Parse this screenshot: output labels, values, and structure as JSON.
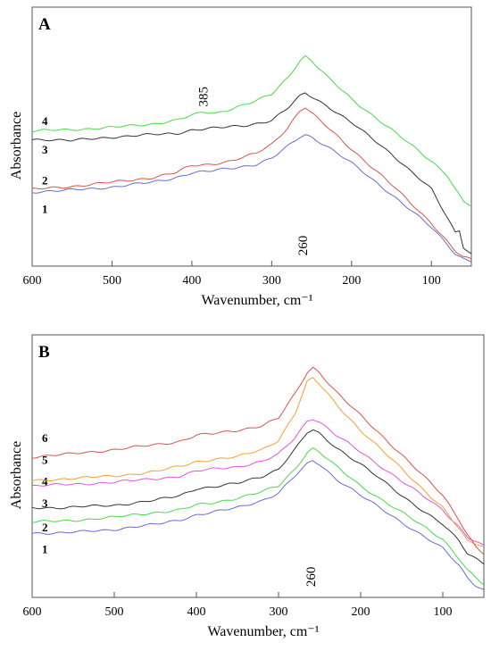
{
  "chart_data": [
    {
      "type": "line",
      "panel": "A",
      "title": "",
      "xlabel": "Wavenumber, cm⁻¹",
      "ylabel": "Absorbance",
      "xlim": [
        600,
        50
      ],
      "ylim": [
        0,
        100
      ],
      "x_ticks": [
        600,
        500,
        400,
        300,
        200,
        100
      ],
      "x_tick_labels": [
        "600",
        "500",
        "400",
        "300",
        "200",
        "100"
      ],
      "annotations": [
        {
          "text": "260",
          "x": 260
        },
        {
          "text": "385",
          "x": 385
        }
      ],
      "series": [
        {
          "label": "1",
          "color": "#6b6bd6",
          "label_y": 22,
          "line_y": 29,
          "points": [
            [
              600,
              29
            ],
            [
              560,
              29.5
            ],
            [
              500,
              31
            ],
            [
              450,
              33
            ],
            [
              420,
              35
            ],
            [
              400,
              37
            ],
            [
              380,
              37.5
            ],
            [
              350,
              39
            ],
            [
              320,
              40.5
            ],
            [
              300,
              43
            ],
            [
              280,
              48
            ],
            [
              265,
              52
            ],
            [
              258,
              53
            ],
            [
              250,
              52
            ],
            [
              230,
              48
            ],
            [
              200,
              41
            ],
            [
              150,
              28
            ],
            [
              100,
              14
            ],
            [
              80,
              7
            ],
            [
              70,
              3
            ],
            [
              60,
              1
            ],
            [
              50,
              0
            ]
          ]
        },
        {
          "label": "2",
          "color": "#e0504a",
          "label_y": 34,
          "line_y": 30.5,
          "points": [
            [
              600,
              30
            ],
            [
              560,
              31
            ],
            [
              500,
              33
            ],
            [
              450,
              35
            ],
            [
              420,
              37
            ],
            [
              400,
              40
            ],
            [
              380,
              40.5
            ],
            [
              350,
              42
            ],
            [
              320,
              45
            ],
            [
              300,
              49
            ],
            [
              280,
              56
            ],
            [
              265,
              63
            ],
            [
              258,
              64.5
            ],
            [
              250,
              62
            ],
            [
              230,
              56
            ],
            [
              200,
              47
            ],
            [
              150,
              32
            ],
            [
              100,
              16
            ],
            [
              80,
              8
            ],
            [
              70,
              4
            ],
            [
              60,
              1.5
            ],
            [
              50,
              0.5
            ]
          ]
        },
        {
          "label": "3",
          "color": "#333333",
          "label_y": 47,
          "line_y": 50.5,
          "points": [
            [
              600,
              51
            ],
            [
              580,
              51
            ],
            [
              550,
              50.5
            ],
            [
              500,
              52
            ],
            [
              450,
              53
            ],
            [
              420,
              53.5
            ],
            [
              400,
              55
            ],
            [
              360,
              56
            ],
            [
              330,
              57
            ],
            [
              300,
              59
            ],
            [
              280,
              64
            ],
            [
              265,
              69
            ],
            [
              258,
              70.5
            ],
            [
              250,
              69
            ],
            [
              230,
              65
            ],
            [
              200,
              58
            ],
            [
              150,
              45
            ],
            [
              100,
              30
            ],
            [
              80,
              18
            ],
            [
              70,
              12
            ],
            [
              65,
              13
            ],
            [
              60,
              6
            ],
            [
              50,
              3
            ]
          ]
        },
        {
          "label": "4",
          "color": "#44dd44",
          "label_y": 59,
          "line_y": 55,
          "points": [
            [
              600,
              54.5
            ],
            [
              560,
              55
            ],
            [
              500,
              56
            ],
            [
              450,
              57.5
            ],
            [
              420,
              59
            ],
            [
              400,
              61
            ],
            [
              385,
              62.5
            ],
            [
              370,
              62
            ],
            [
              350,
              64
            ],
            [
              320,
              67
            ],
            [
              300,
              70
            ],
            [
              280,
              77
            ],
            [
              265,
              84
            ],
            [
              258,
              86
            ],
            [
              250,
              84
            ],
            [
              230,
              77
            ],
            [
              200,
              68
            ],
            [
              150,
              55
            ],
            [
              100,
              42
            ],
            [
              80,
              36
            ],
            [
              70,
              30
            ],
            [
              60,
              25
            ],
            [
              50,
              23
            ]
          ]
        }
      ]
    },
    {
      "type": "line",
      "panel": "B",
      "title": "",
      "xlabel": "Wavenumber, cm⁻¹",
      "ylabel": "Absorbance",
      "xlim": [
        600,
        50
      ],
      "ylim": [
        0,
        100
      ],
      "x_ticks": [
        600,
        500,
        400,
        300,
        200,
        100
      ],
      "x_tick_labels": [
        "600",
        "500",
        "400",
        "300",
        "200",
        "100"
      ],
      "annotations": [
        {
          "text": "260",
          "x": 260
        }
      ],
      "series": [
        {
          "label": "1",
          "color": "#6b6bd6",
          "label_y": 18,
          "line_y": 24.5,
          "points": [
            [
              600,
              24.5
            ],
            [
              560,
              24.5
            ],
            [
              500,
              26
            ],
            [
              450,
              28
            ],
            [
              420,
              30
            ],
            [
              400,
              32
            ],
            [
              380,
              33
            ],
            [
              350,
              35
            ],
            [
              320,
              38
            ],
            [
              300,
              41
            ],
            [
              280,
              48
            ],
            [
              265,
              53
            ],
            [
              258,
              54.5
            ],
            [
              250,
              53
            ],
            [
              230,
              47
            ],
            [
              200,
              40
            ],
            [
              150,
              29
            ],
            [
              100,
              18
            ],
            [
              80,
              11
            ],
            [
              70,
              6
            ],
            [
              60,
              3
            ],
            [
              50,
              1
            ]
          ]
        },
        {
          "label": "2",
          "color": "#44dd44",
          "label_y": 27,
          "line_y": 29,
          "points": [
            [
              600,
              29
            ],
            [
              560,
              29.5
            ],
            [
              500,
              31
            ],
            [
              450,
              33
            ],
            [
              420,
              34
            ],
            [
              400,
              36
            ],
            [
              380,
              37
            ],
            [
              350,
              39
            ],
            [
              320,
              41.5
            ],
            [
              300,
              44
            ],
            [
              280,
              51
            ],
            [
              265,
              58
            ],
            [
              258,
              59.5
            ],
            [
              250,
              58
            ],
            [
              230,
              52
            ],
            [
              200,
              44
            ],
            [
              150,
              33
            ],
            [
              100,
              22
            ],
            [
              80,
              14
            ],
            [
              70,
              9
            ],
            [
              60,
              6
            ],
            [
              50,
              3
            ]
          ]
        },
        {
          "label": "3",
          "color": "#333333",
          "label_y": 37,
          "line_y": 34.5,
          "points": [
            [
              600,
              35
            ],
            [
              560,
              35
            ],
            [
              500,
              36
            ],
            [
              450,
              38
            ],
            [
              420,
              40
            ],
            [
              400,
              43
            ],
            [
              380,
              43.5
            ],
            [
              350,
              45
            ],
            [
              320,
              48
            ],
            [
              300,
              51
            ],
            [
              280,
              59
            ],
            [
              265,
              66
            ],
            [
              258,
              67
            ],
            [
              250,
              65.5
            ],
            [
              230,
              60
            ],
            [
              200,
              53
            ],
            [
              150,
              40
            ],
            [
              100,
              28
            ],
            [
              80,
              21
            ],
            [
              70,
              16
            ],
            [
              60,
              14
            ],
            [
              50,
              12
            ]
          ]
        },
        {
          "label": "4",
          "color": "#e055e0",
          "label_y": 46,
          "line_y": 44,
          "points": [
            [
              600,
              44
            ],
            [
              560,
              44.5
            ],
            [
              500,
              45.5
            ],
            [
              450,
              47
            ],
            [
              420,
              48
            ],
            [
              400,
              50
            ],
            [
              380,
              51
            ],
            [
              350,
              52
            ],
            [
              320,
              54
            ],
            [
              300,
              57
            ],
            [
              280,
              64
            ],
            [
              265,
              71
            ],
            [
              258,
              72
            ],
            [
              250,
              70.5
            ],
            [
              230,
              65
            ],
            [
              200,
              58
            ],
            [
              150,
              46
            ],
            [
              100,
              34
            ],
            [
              80,
              27
            ],
            [
              70,
              23
            ],
            [
              60,
              21
            ],
            [
              50,
              19
            ]
          ]
        },
        {
          "label": "5",
          "color": "#f5a030",
          "label_y": 55,
          "line_y": 46,
          "points": [
            [
              600,
              46
            ],
            [
              560,
              47
            ],
            [
              500,
              48
            ],
            [
              450,
              50
            ],
            [
              420,
              52
            ],
            [
              400,
              54
            ],
            [
              380,
              55
            ],
            [
              350,
              56
            ],
            [
              320,
              59
            ],
            [
              300,
              63
            ],
            [
              280,
              74
            ],
            [
              265,
              87
            ],
            [
              258,
              88.5
            ],
            [
              250,
              86
            ],
            [
              230,
              78
            ],
            [
              200,
              67
            ],
            [
              150,
              51
            ],
            [
              100,
              35
            ],
            [
              80,
              26
            ],
            [
              70,
              21
            ],
            [
              60,
              20
            ],
            [
              50,
              19
            ]
          ]
        },
        {
          "label": "6",
          "color": "#e0504a",
          "label_y": 64,
          "line_y": 56,
          "points": [
            [
              600,
              56
            ],
            [
              560,
              57
            ],
            [
              500,
              59
            ],
            [
              450,
              61
            ],
            [
              420,
              62.5
            ],
            [
              400,
              65
            ],
            [
              380,
              65.5
            ],
            [
              350,
              67
            ],
            [
              320,
              69
            ],
            [
              300,
              72
            ],
            [
              280,
              82
            ],
            [
              265,
              91
            ],
            [
              258,
              93
            ],
            [
              250,
              91
            ],
            [
              230,
              83
            ],
            [
              200,
              73
            ],
            [
              150,
              57
            ],
            [
              100,
              40
            ],
            [
              80,
              30
            ],
            [
              70,
              24
            ],
            [
              60,
              19
            ],
            [
              50,
              16
            ]
          ]
        }
      ]
    }
  ]
}
